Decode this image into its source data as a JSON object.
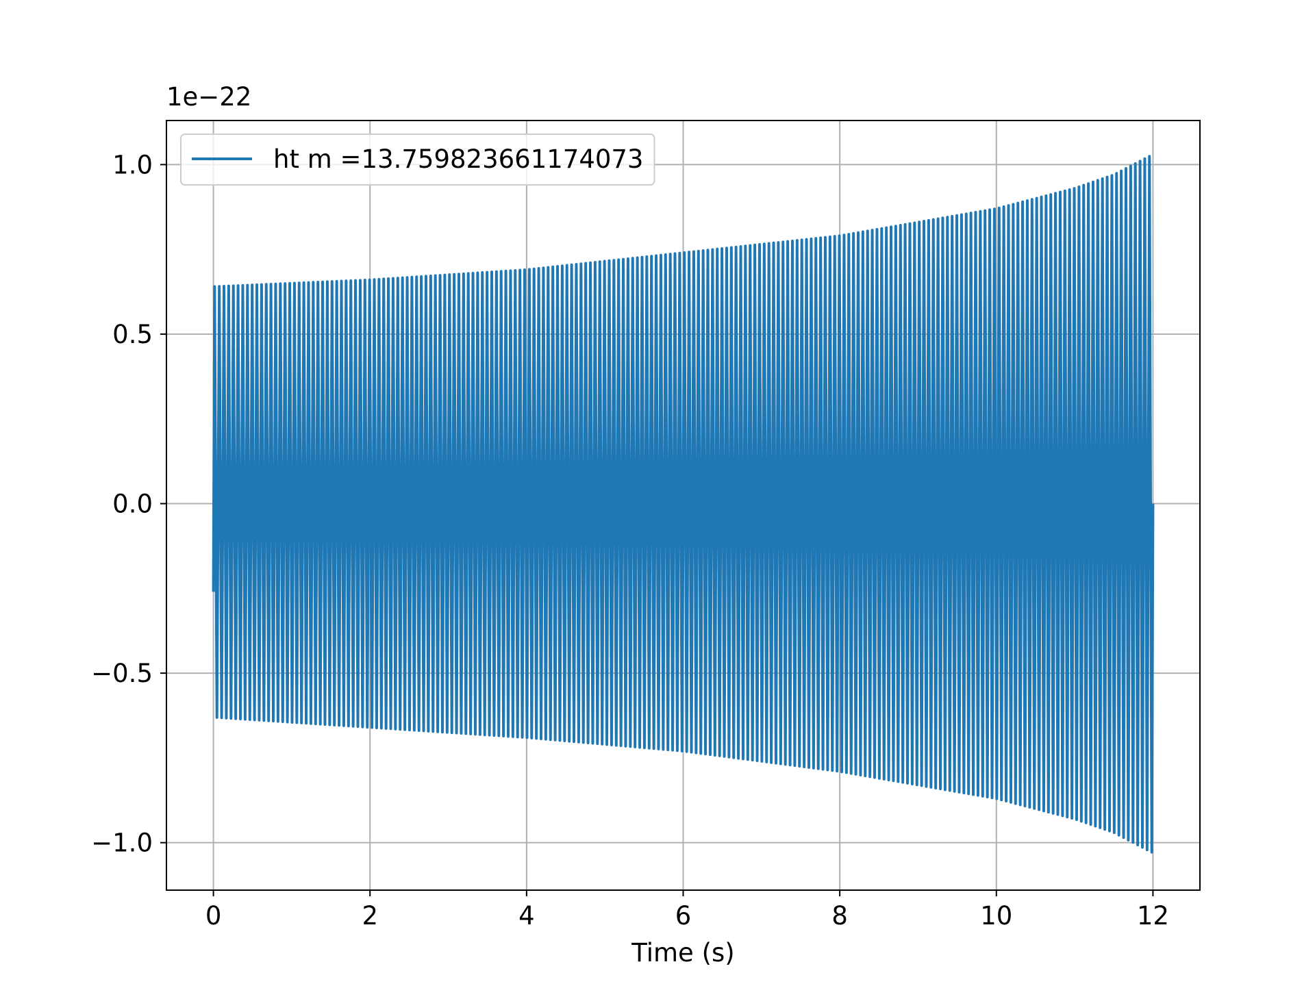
{
  "chart_data": {
    "type": "line",
    "title": "",
    "xlabel": "Time (s)",
    "ylabel": "",
    "y_offset_label": "1e−22",
    "xlim": [
      -0.6,
      12.6
    ],
    "ylim": [
      -1.14,
      1.13
    ],
    "x_ticks": [
      0,
      2,
      4,
      6,
      8,
      10,
      12
    ],
    "x_tick_labels": [
      "0",
      "2",
      "4",
      "6",
      "8",
      "10",
      "12"
    ],
    "y_ticks": [
      -1.0,
      -0.5,
      0.0,
      0.5,
      1.0
    ],
    "y_tick_labels": [
      "−1.0",
      "−0.5",
      "0.0",
      "0.5",
      "1.0"
    ],
    "grid": true,
    "legend_position": "top-left",
    "color": "#1f77b4",
    "series": [
      {
        "name": "ht m =13.759823661174073",
        "x_start": 0,
        "x_end": 12.0,
        "initial_value": -0.26,
        "envelope": {
          "x": [
            0,
            2,
            4,
            6,
            8,
            10,
            11,
            11.5,
            12.0
          ],
          "upper": [
            0.64,
            0.66,
            0.69,
            0.74,
            0.79,
            0.87,
            0.93,
            0.97,
            1.03
          ],
          "lower": [
            -0.63,
            -0.66,
            -0.69,
            -0.73,
            -0.79,
            -0.87,
            -0.93,
            -0.97,
            -1.03
          ]
        },
        "visible_cycles": 200
      }
    ]
  }
}
